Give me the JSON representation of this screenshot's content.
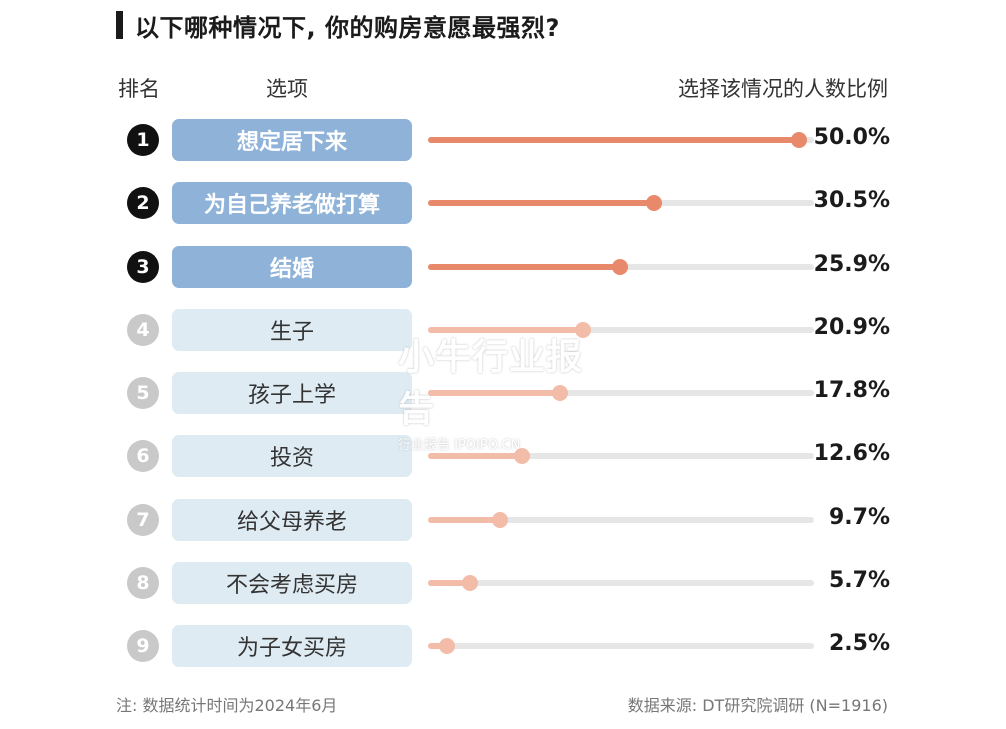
{
  "title": "以下哪种情况下, 你的购房意愿最强烈?",
  "headers": {
    "rank": "排名",
    "option": "选项",
    "ratio": "选择该情况的人数比例"
  },
  "colors": {
    "top_pill": "#8eb2d8",
    "rest_pill": "#deebf3",
    "top_bar": "#e9896c",
    "rest_bar": "#f3bca9",
    "track": "#e6e6e6"
  },
  "chart_data": {
    "type": "bar",
    "orientation": "horizontal",
    "categories": [
      "想定居下来",
      "为自己养老做打算",
      "结婚",
      "生子",
      "孩子上学",
      "投资",
      "给父母养老",
      "不会考虑买房",
      "为子女买房"
    ],
    "ranks": [
      "1",
      "2",
      "3",
      "4",
      "5",
      "6",
      "7",
      "8",
      "9"
    ],
    "values": [
      50.0,
      30.5,
      25.9,
      20.9,
      17.8,
      12.6,
      9.7,
      5.7,
      2.5
    ],
    "labels": [
      "50.0%",
      "30.5%",
      "25.9%",
      "20.9%",
      "17.8%",
      "12.6%",
      "9.7%",
      "5.7%",
      "2.5%"
    ],
    "xlim": [
      0,
      52
    ]
  },
  "watermark": {
    "main": "小牛行业报告",
    "sub": "行业报告 IPOIPO.CN"
  },
  "footer": {
    "note": "注: 数据统计时间为2024年6月",
    "source": "数据来源: DT研究院调研 (N=1916)"
  }
}
